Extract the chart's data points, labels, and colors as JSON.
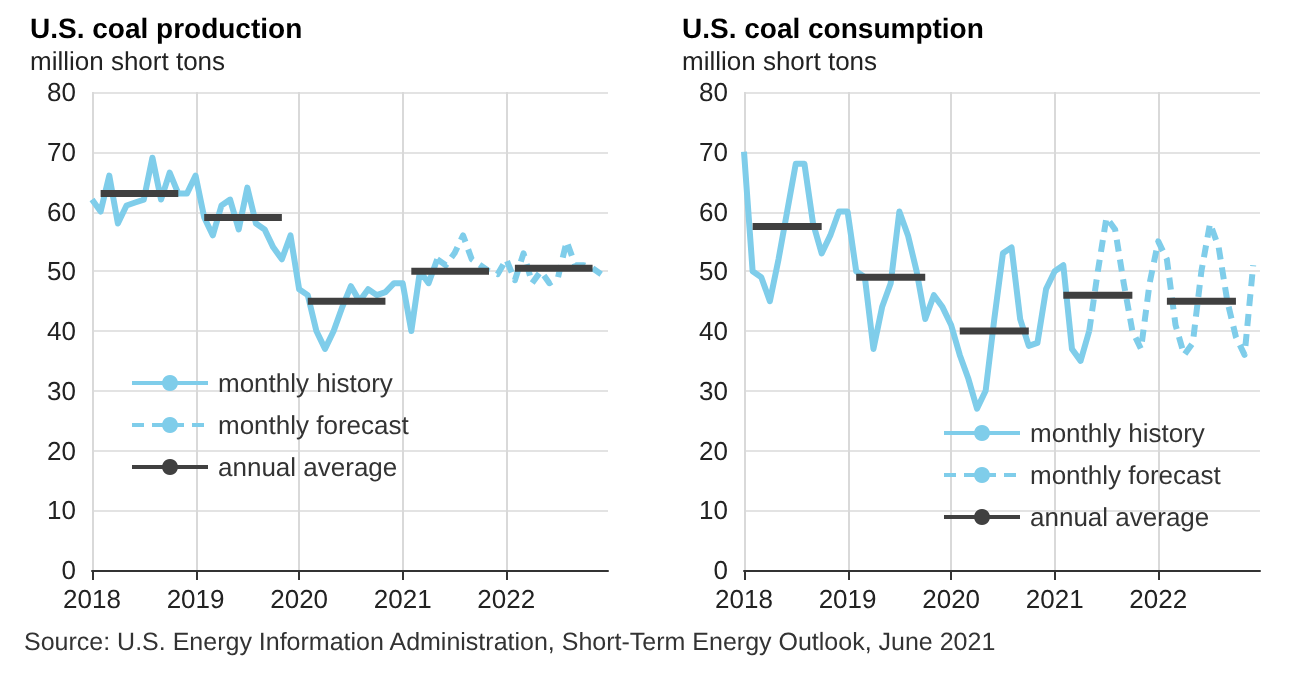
{
  "chart_data": [
    {
      "type": "line",
      "title": "U.S. coal production",
      "subtitle": "million short tons",
      "annotations": [
        "Source: U.S. Energy Information Administration, Short-Term Energy Outlook, June 2021"
      ],
      "xlim": [
        "2018-01-01",
        "2022-12-25"
      ],
      "xticks": [
        {
          "value": "2018-01-01",
          "label": "2018"
        },
        {
          "value": "2019-01-01",
          "label": "2019"
        },
        {
          "value": "2020-01-01",
          "label": "2020"
        },
        {
          "value": "2021-01-01",
          "label": "2021"
        },
        {
          "value": "2022-01-01",
          "label": "2022"
        }
      ],
      "ylim": [
        0,
        80
      ],
      "yticks": [
        0,
        10,
        20,
        30,
        40,
        50,
        60,
        70,
        80
      ],
      "grid": true,
      "legend": "bottom left",
      "marker": "none",
      "series": [
        {
          "name": "monthly history",
          "color": "#7fcdea",
          "line_style": "solid",
          "x": [
            "2018-01",
            "2018-02",
            "2018-03",
            "2018-04",
            "2018-05",
            "2018-06",
            "2018-07",
            "2018-08",
            "2018-09",
            "2018-10",
            "2018-11",
            "2018-12",
            "2019-01",
            "2019-02",
            "2019-03",
            "2019-04",
            "2019-05",
            "2019-06",
            "2019-07",
            "2019-08",
            "2019-09",
            "2019-10",
            "2019-11",
            "2019-12",
            "2020-01",
            "2020-02",
            "2020-03",
            "2020-04",
            "2020-05",
            "2020-06",
            "2020-07",
            "2020-08",
            "2020-09",
            "2020-10",
            "2020-11",
            "2020-12",
            "2021-01",
            "2021-02",
            "2021-03",
            "2021-04",
            "2021-05"
          ],
          "values": [
            62,
            60,
            66,
            58,
            61,
            61.5,
            62,
            69,
            62,
            66.5,
            63,
            63,
            66,
            59,
            56,
            61,
            62,
            57,
            64,
            58,
            57,
            54,
            52,
            56,
            47,
            46,
            40,
            37,
            40,
            44,
            47.5,
            45,
            47,
            46,
            46.5,
            48,
            48,
            40,
            50,
            48,
            52
          ]
        },
        {
          "name": "monthly forecast",
          "color": "#7fcdea",
          "line_style": "dashed",
          "x": [
            "2021-05",
            "2021-06",
            "2021-07",
            "2021-08",
            "2021-09",
            "2021-10",
            "2021-11",
            "2021-12",
            "2022-01",
            "2022-02",
            "2022-03",
            "2022-04",
            "2022-05",
            "2022-06",
            "2022-07",
            "2022-08",
            "2022-09",
            "2022-10",
            "2022-11",
            "2022-12"
          ],
          "values": [
            52,
            51,
            53,
            56,
            52,
            51,
            50,
            49.5,
            52,
            48.5,
            53,
            48,
            50,
            48,
            49,
            55,
            51,
            51,
            50.5,
            49.5
          ]
        },
        {
          "name": "annual average",
          "color": "#404040",
          "line_style": "solid",
          "x": [
            "2018-02",
            "2018-11",
            "2018-12",
            "2019-02",
            "2019-11",
            "2019-12",
            "2020-02",
            "2020-11",
            "2020-12",
            "2021-02",
            "2021-11",
            "2021-12",
            "2022-02",
            "2022-11"
          ],
          "values": [
            63,
            63,
            null,
            59,
            59,
            null,
            45,
            45,
            null,
            50,
            50,
            null,
            50.5,
            50.5
          ]
        }
      ]
    },
    {
      "type": "line",
      "title": "U.S. coal consumption",
      "subtitle": "million short tons",
      "xlim": [
        "2018-01-01",
        "2022-12-25"
      ],
      "xticks": [
        {
          "value": "2018-01-01",
          "label": "2018"
        },
        {
          "value": "2019-01-01",
          "label": "2019"
        },
        {
          "value": "2020-01-01",
          "label": "2020"
        },
        {
          "value": "2021-01-01",
          "label": "2021"
        },
        {
          "value": "2022-01-01",
          "label": "2022"
        }
      ],
      "ylim": [
        0,
        80
      ],
      "yticks": [
        0,
        10,
        20,
        30,
        40,
        50,
        60,
        70,
        80
      ],
      "grid": true,
      "legend": "bottom right",
      "marker": "none",
      "series": [
        {
          "name": "monthly history",
          "color": "#7fcdea",
          "line_style": "solid",
          "x": [
            "2018-01",
            "2018-02",
            "2018-03",
            "2018-04",
            "2018-05",
            "2018-06",
            "2018-07",
            "2018-08",
            "2018-09",
            "2018-10",
            "2018-11",
            "2018-12",
            "2019-01",
            "2019-02",
            "2019-03",
            "2019-04",
            "2019-05",
            "2019-06",
            "2019-07",
            "2019-08",
            "2019-09",
            "2019-10",
            "2019-11",
            "2019-12",
            "2020-01",
            "2020-02",
            "2020-03",
            "2020-04",
            "2020-05",
            "2020-06",
            "2020-07",
            "2020-08",
            "2020-09",
            "2020-10",
            "2020-11",
            "2020-12",
            "2021-01",
            "2021-02",
            "2021-03",
            "2021-04",
            "2021-05"
          ],
          "values": [
            70,
            50,
            49,
            45,
            52,
            60,
            68,
            68,
            58,
            53,
            56,
            60,
            60,
            50,
            49,
            37,
            44,
            48,
            60,
            56,
            50,
            42,
            46,
            44,
            41,
            36,
            32,
            27,
            30,
            42,
            53,
            54,
            42,
            37.5,
            38,
            47,
            50,
            51,
            37,
            35,
            40
          ]
        },
        {
          "name": "monthly forecast",
          "color": "#7fcdea",
          "line_style": "dashed",
          "x": [
            "2021-05",
            "2021-06",
            "2021-07",
            "2021-08",
            "2021-09",
            "2021-10",
            "2021-11",
            "2021-12",
            "2022-01",
            "2022-02",
            "2022-03",
            "2022-04",
            "2022-05",
            "2022-06",
            "2022-07",
            "2022-08",
            "2022-09",
            "2022-10",
            "2022-11",
            "2022-12"
          ],
          "values": [
            40,
            50,
            59,
            57,
            48,
            40,
            37,
            48,
            55,
            52,
            41,
            36,
            38,
            50,
            58,
            54,
            45,
            39,
            36,
            51
          ]
        },
        {
          "name": "annual average",
          "color": "#404040",
          "line_style": "solid",
          "x": [
            "2018-02",
            "2018-10",
            "2018-12",
            "2019-02",
            "2019-10",
            "2019-12",
            "2020-02",
            "2020-10",
            "2020-12",
            "2021-02",
            "2021-10",
            "2021-12",
            "2022-02",
            "2022-10"
          ],
          "values": [
            57.5,
            57.5,
            null,
            49,
            49,
            null,
            40,
            40,
            null,
            46,
            46,
            null,
            45,
            45
          ]
        }
      ]
    }
  ]
}
